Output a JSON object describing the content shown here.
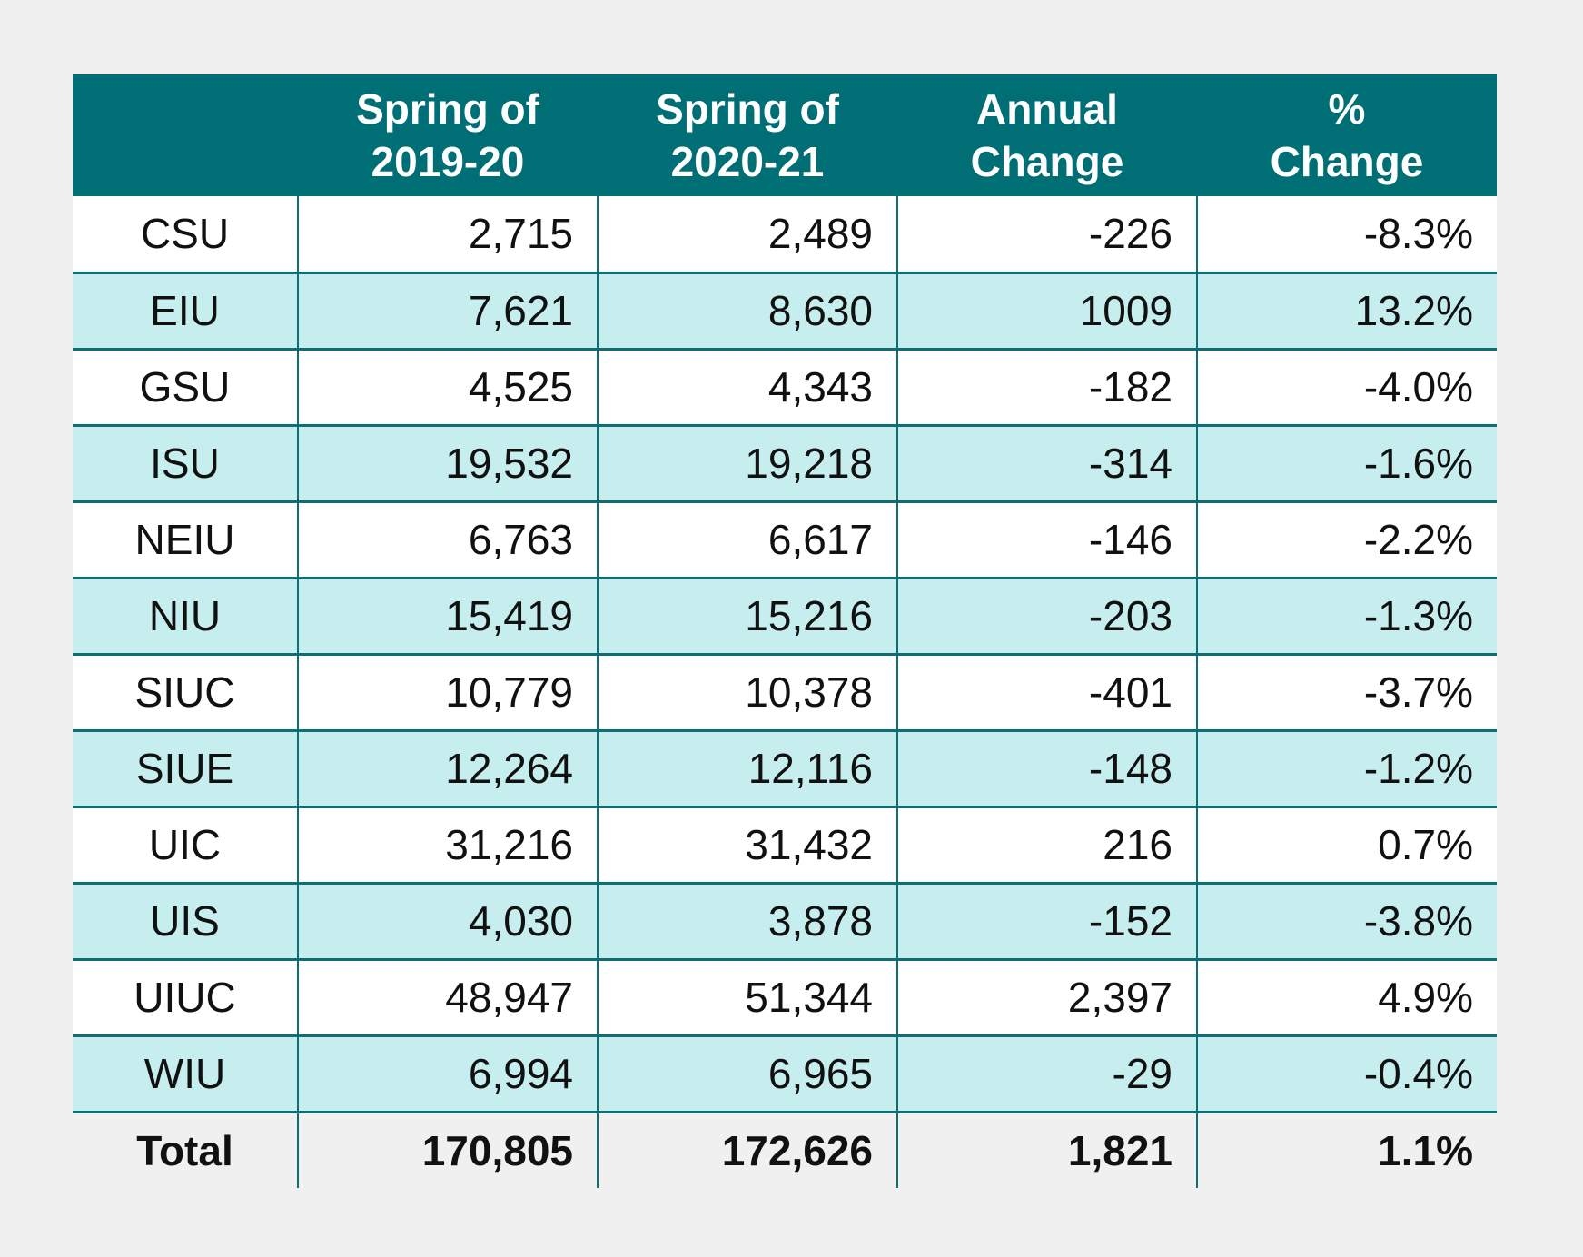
{
  "chart_data": {
    "type": "table",
    "columns": [
      "",
      "Spring of\n2019-20",
      "Spring of\n2020-21",
      "Annual\nChange",
      "%\nChange"
    ],
    "rows": [
      [
        "CSU",
        "2,715",
        "2,489",
        "-226",
        "-8.3%"
      ],
      [
        "EIU",
        "7,621",
        "8,630",
        "1009",
        "13.2%"
      ],
      [
        "GSU",
        "4,525",
        "4,343",
        "-182",
        "-4.0%"
      ],
      [
        "ISU",
        "19,532",
        "19,218",
        "-314",
        "-1.6%"
      ],
      [
        "NEIU",
        "6,763",
        "6,617",
        "-146",
        "-2.2%"
      ],
      [
        "NIU",
        "15,419",
        "15,216",
        "-203",
        "-1.3%"
      ],
      [
        "SIUC",
        "10,779",
        "10,378",
        "-401",
        "-3.7%"
      ],
      [
        "SIUE",
        "12,264",
        "12,116",
        "-148",
        "-1.2%"
      ],
      [
        "UIC",
        "31,216",
        "31,432",
        "216",
        "0.7%"
      ],
      [
        "UIS",
        "4,030",
        "3,878",
        "-152",
        "-3.8%"
      ],
      [
        "UIUC",
        "48,947",
        "51,344",
        "2,397",
        "4.9%"
      ],
      [
        "WIU",
        "6,994",
        "6,965",
        "-29",
        "-0.4%"
      ]
    ],
    "total": [
      "Total",
      "170,805",
      "172,626",
      "1,821",
      "1.1%"
    ]
  },
  "colors": {
    "header_bg": "#006e75",
    "header_text": "#ffffff",
    "row_alt_bg": "#c6eeee",
    "row_bg": "#ffffff",
    "grid_line": "#0f6e74",
    "page_bg": "#f0f0f0"
  }
}
